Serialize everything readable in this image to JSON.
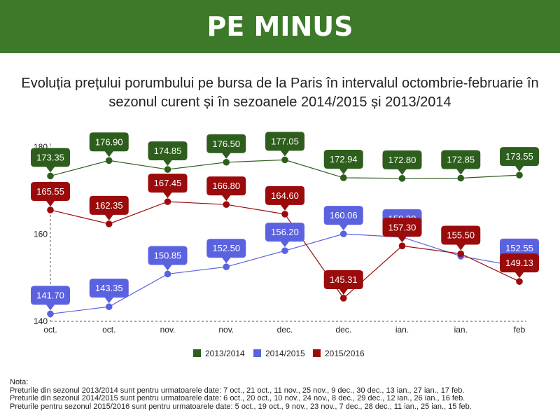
{
  "banner": {
    "title": "PE MINUS",
    "color": "#3c7a2a"
  },
  "chart_data": {
    "type": "line",
    "title": "Evoluția prețului porumbului pe bursa de la Paris în intervalul octombrie-februarie în sezonul curent și în sezoanele 2014/2015 și 2013/2014",
    "categories": [
      "oct.",
      "oct.",
      "nov.",
      "nov.",
      "dec.",
      "dec.",
      "ian.",
      "ian.",
      "feb"
    ],
    "yticks": [
      140,
      160,
      180
    ],
    "ylim": [
      140,
      180
    ],
    "grid": false,
    "legend_position": "bottom",
    "series": [
      {
        "name": "2013/2014",
        "color": "#2e5e1d",
        "values": [
          173.35,
          176.9,
          174.85,
          176.5,
          177.05,
          172.94,
          172.8,
          172.85,
          173.55
        ]
      },
      {
        "name": "2014/2015",
        "color": "#5b62e0",
        "values": [
          141.7,
          143.35,
          150.85,
          152.5,
          156.2,
          160.06,
          159.3,
          154.95,
          152.55
        ]
      },
      {
        "name": "2015/2016",
        "color": "#9b0b0b",
        "values": [
          165.55,
          162.35,
          167.45,
          166.8,
          164.6,
          145.31,
          157.3,
          155.5,
          149.13
        ]
      }
    ],
    "data_labels": [
      [
        "173.35",
        "176.90",
        "174.85",
        "176.50",
        "177.05",
        "172.94",
        "172.80",
        "172.85",
        "173.55"
      ],
      [
        "141.70",
        "143.35",
        "150.85",
        "152.50",
        "156.20",
        "160.06",
        "159.30",
        "",
        "152.55"
      ],
      [
        "165.55",
        "162.35",
        "167.45",
        "166.80",
        "164.60",
        "145.31",
        "157.30",
        "155.50",
        "149.13"
      ]
    ]
  },
  "notes": {
    "heading": "Nota:",
    "lines": [
      "Preturile din sezonul 2013/2014 sunt pentru urmatoarele date: 7 oct., 21 oct., 11 nov., 25 nov., 9 dec., 30 dec., 13 ian., 27 ian., 17 feb.",
      "Preturile din sezonul 2014/2015 sunt pentru urmatoarele date: 6 oct., 20 oct., 10 nov., 24 nov., 8 dec., 29 dec., 12 ian., 26 ian., 16 feb.",
      "Preturile pentru sezonul 2015/2016 sunt pentru urmatoarele date: 5 oct., 19 oct., 9 nov., 23 nov., 7 dec., 28 dec., 11 ian., 25 ian., 15 feb."
    ]
  }
}
